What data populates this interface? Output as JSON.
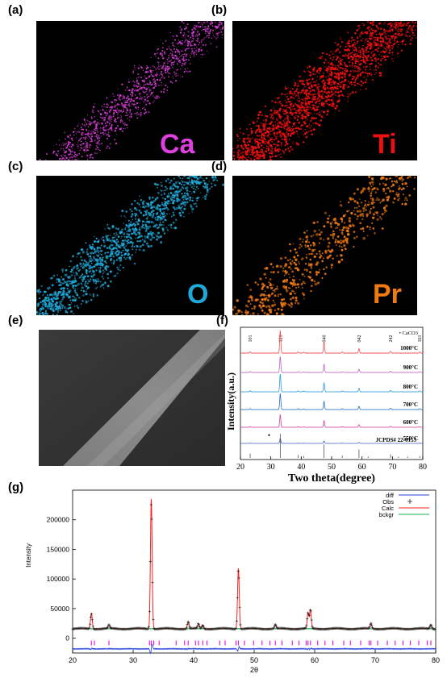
{
  "panels": {
    "a": {
      "label": "(a)",
      "element": "Ca",
      "color": "#e040e0"
    },
    "b": {
      "label": "(b)",
      "element": "Ti",
      "color": "#ee1010"
    },
    "c": {
      "label": "(c)",
      "element": "O",
      "color": "#1fa8d8"
    },
    "d": {
      "label": "(d)",
      "element": "Pr",
      "color": "#f07a12"
    },
    "e": {
      "label": "(e)"
    },
    "f": {
      "label": "(f)"
    },
    "g": {
      "label": "(g)"
    }
  },
  "chart_data": [
    {
      "type": "line",
      "panel": "f",
      "xlabel": "Two theta(degree)",
      "ylabel": "Intensity(a.u.)",
      "xlim": [
        20,
        80
      ],
      "xticks": [
        20,
        30,
        40,
        50,
        60,
        70,
        80
      ],
      "legend": "• CaCO3",
      "peak_labels": [
        {
          "hkl": "101",
          "x": 23.2
        },
        {
          "hkl": "121",
          "x": 33.1
        },
        {
          "hkl": "040",
          "x": 47.5
        },
        {
          "hkl": "042",
          "x": 59.0
        },
        {
          "hkl": "242",
          "x": 69.4
        },
        {
          "hkl": "161",
          "x": 79.0
        }
      ],
      "series": [
        {
          "name": "1000°C",
          "color": "#f05050"
        },
        {
          "name": "900°C",
          "color": "#c060c0"
        },
        {
          "name": "800°C",
          "color": "#2a9ad8"
        },
        {
          "name": "700°C",
          "color": "#2070c0"
        },
        {
          "name": "600°C",
          "color": "#d040a0"
        },
        {
          "name": "550°C",
          "color": "#4060c0"
        }
      ],
      "peaks": {
        "x": [
          23.2,
          33.1,
          39.0,
          40.8,
          47.5,
          53.5,
          59.0,
          69.4,
          79.0
        ],
        "rel_intensity": [
          0.06,
          1.0,
          0.05,
          0.04,
          0.5,
          0.05,
          0.2,
          0.08,
          0.05
        ]
      },
      "reference": {
        "name": "JCPDS# 22-0153",
        "x": [
          23.2,
          33.1,
          39.0,
          40.8,
          47.5,
          53.5,
          59.0,
          62.0,
          69.4,
          72.0,
          75.0,
          79.0
        ],
        "rel_intensity": [
          0.18,
          1.0,
          0.12,
          0.08,
          0.55,
          0.1,
          0.35,
          0.06,
          0.15,
          0.05,
          0.05,
          0.08
        ]
      },
      "marker": {
        "symbol": "•",
        "x": 29.4,
        "series": "550°C"
      }
    },
    {
      "type": "line",
      "panel": "g",
      "xlabel": "2θ",
      "ylabel": "Intensity",
      "xlim": [
        20,
        80
      ],
      "ylim": [
        -25000,
        250000
      ],
      "xticks": [
        20,
        30,
        40,
        50,
        60,
        70,
        80
      ],
      "yticks": [
        0,
        50000,
        100000,
        150000,
        200000
      ],
      "legend": [
        {
          "name": "diff",
          "color": "#2040e0"
        },
        {
          "name": "Obs",
          "color": "#202020"
        },
        {
          "name": "Calc",
          "color": "#ff2020"
        },
        {
          "name": "bckgr",
          "color": "#10b050"
        }
      ],
      "background": 16000,
      "peaks": {
        "x": [
          23.1,
          26.0,
          33.0,
          39.1,
          40.8,
          41.5,
          47.4,
          53.5,
          58.9,
          59.3,
          69.3,
          79.2
        ],
        "y": [
          42000,
          22000,
          235000,
          28000,
          24000,
          22000,
          118000,
          23000,
          42000,
          48000,
          25000,
          23000
        ]
      },
      "bragg_ticks_y": -8000,
      "bragg_ticks_x": [
        23.1,
        23.6,
        26.0,
        32.7,
        33.0,
        33.4,
        34.3,
        37.1,
        38.5,
        39.1,
        40.3,
        40.8,
        41.5,
        42.2,
        44.3,
        45.2,
        47.0,
        47.4,
        48.4,
        49.9,
        51.3,
        52.6,
        53.5,
        54.6,
        56.3,
        57.4,
        58.6,
        58.9,
        59.3,
        60.5,
        61.7,
        63.0,
        64.8,
        65.9,
        67.6,
        69.0,
        69.3,
        70.4,
        72.0,
        73.3,
        74.6,
        75.8,
        77.2,
        78.6,
        79.2
      ],
      "diff_offset": -18000
    }
  ]
}
